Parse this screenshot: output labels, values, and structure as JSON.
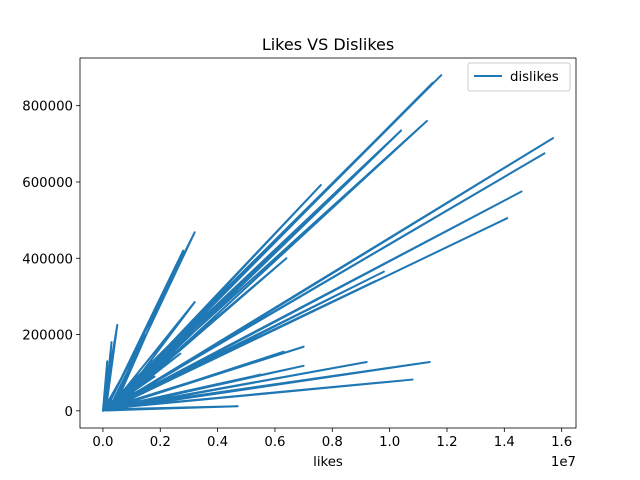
{
  "chart_data": {
    "type": "line",
    "title": "Likes VS Dislikes",
    "xlabel": "likes",
    "ylabel": "",
    "x_offset_text": "1e7",
    "xlim": [
      -800000,
      16500000
    ],
    "ylim": [
      -45000,
      925000
    ],
    "x_ticks": [
      0,
      2000000,
      4000000,
      6000000,
      8000000,
      10000000,
      12000000,
      14000000,
      16000000
    ],
    "x_tick_labels": [
      "0.0",
      "0.2",
      "0.4",
      "0.6",
      "0.8",
      "1.0",
      "1.2",
      "1.4",
      "1.6"
    ],
    "y_ticks": [
      0,
      200000,
      400000,
      600000,
      800000
    ],
    "y_tick_labels": [
      "0",
      "200000",
      "400000",
      "600000",
      "800000"
    ],
    "grid": false,
    "legend_position": "top-right",
    "series": [
      {
        "name": "dislikes",
        "color": "#1f77b4",
        "x": [
          0,
          11800000,
          200000,
          11500000,
          300000,
          10400000,
          100000,
          10200000,
          500000,
          11300000,
          200000,
          7600000,
          300000,
          3200000,
          100000,
          2800000,
          400000,
          6400000,
          200000,
          3200000,
          500000,
          15700000,
          300000,
          15400000,
          200000,
          14600000,
          400000,
          14100000,
          300000,
          9800000,
          100000,
          9500000,
          400000,
          7000000,
          200000,
          6300000,
          100000,
          11400000,
          300000,
          10800000,
          200000,
          9200000,
          100000,
          7000000,
          300000,
          5500000,
          200000,
          4700000,
          100000,
          2600000,
          0,
          500000,
          100000,
          300000,
          50000,
          150000,
          0,
          1500000,
          200000,
          2700000,
          100000,
          1800000,
          0,
          900000,
          100000,
          600000,
          0,
          400000,
          0
        ],
        "y": [
          0,
          880000,
          5000,
          860000,
          8000,
          735000,
          3000,
          720000,
          12000,
          760000,
          5000,
          592000,
          8000,
          468000,
          2000,
          420000,
          10000,
          400000,
          4000,
          285000,
          15000,
          715000,
          9000,
          675000,
          6000,
          575000,
          11000,
          505000,
          7000,
          365000,
          3000,
          340000,
          13000,
          168000,
          5000,
          155000,
          2000,
          128000,
          8000,
          82000,
          6000,
          128000,
          3000,
          118000,
          9000,
          95000,
          4000,
          12000,
          1000,
          110000,
          0,
          225000,
          2000,
          180000,
          1000,
          130000,
          0,
          200000,
          3000,
          150000,
          1000,
          90000,
          0,
          60000,
          1000,
          45000,
          0,
          30000,
          0
        ]
      }
    ]
  }
}
